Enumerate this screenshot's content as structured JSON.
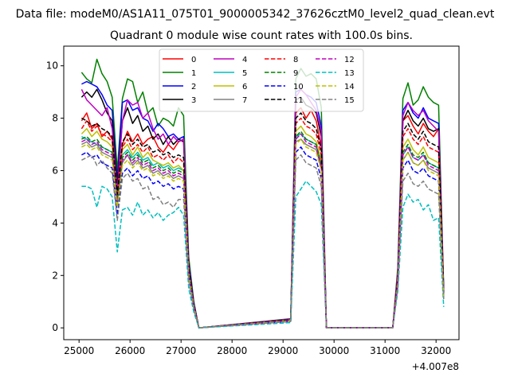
{
  "chart_data": {
    "type": "line",
    "suptitle": "Data file: modeM0/AS1A11_075T01_9000005342_37626cztM0_level2_quad_clean.evt",
    "title": "Quadrant 0 module wise count rates with 100.0s bins.",
    "xlabel": "",
    "ylabel": "",
    "x_offset_label": "+4.007e8",
    "xlim": [
      24700,
      32450
    ],
    "ylim": [
      -0.45,
      10.75
    ],
    "xticks": [
      25000,
      26000,
      27000,
      28000,
      29000,
      30000,
      31000,
      32000
    ],
    "yticks": [
      0,
      2,
      4,
      6,
      8,
      10
    ],
    "grid": false,
    "legend": {
      "placement": "upper-center",
      "columns": 4
    },
    "x": [
      25050,
      25150,
      25250,
      25350,
      25450,
      25550,
      25650,
      25750,
      25850,
      25950,
      26050,
      26150,
      26250,
      26350,
      26450,
      26550,
      26650,
      26750,
      26850,
      26950,
      27050,
      27150,
      27250,
      27350,
      29150,
      29250,
      29350,
      29450,
      29550,
      29650,
      29750,
      29850,
      31150,
      31250,
      31350,
      31450,
      31550,
      31650,
      31750,
      31850,
      31950,
      32050,
      32150
    ],
    "off_segments": [
      [
        27350,
        29150
      ],
      [
        29850,
        31150
      ]
    ],
    "series": [
      {
        "name": "0",
        "color": "#ff0000",
        "dash": "solid",
        "values": [
          7.9,
          8.2,
          7.6,
          7.8,
          7.3,
          7.5,
          7.2,
          5.0,
          7.0,
          7.5,
          7.1,
          7.4,
          7.0,
          7.2,
          7.3,
          6.9,
          6.7,
          7.0,
          6.8,
          7.1,
          7.2,
          2.3,
          0.9,
          0.0,
          0.3,
          8.2,
          8.4,
          8.0,
          8.3,
          7.9,
          6.9,
          0.0,
          0.0,
          1.9,
          7.9,
          8.1,
          7.7,
          7.4,
          7.8,
          7.5,
          7.3,
          7.6,
          1.2
        ]
      },
      {
        "name": "1",
        "color": "#008000",
        "dash": "solid",
        "values": [
          9.75,
          9.5,
          9.35,
          10.25,
          9.7,
          9.4,
          8.8,
          6.0,
          8.75,
          9.5,
          9.4,
          8.6,
          9.0,
          8.2,
          8.4,
          7.7,
          8.0,
          7.9,
          7.7,
          8.4,
          8.1,
          2.7,
          1.0,
          0.0,
          0.35,
          9.5,
          9.9,
          9.6,
          9.7,
          9.5,
          8.4,
          0.0,
          0.0,
          2.3,
          8.75,
          9.35,
          8.5,
          8.7,
          9.2,
          8.8,
          8.6,
          8.5,
          1.5
        ]
      },
      {
        "name": "2",
        "color": "#0000ff",
        "dash": "solid",
        "values": [
          9.3,
          9.4,
          9.3,
          9.2,
          8.9,
          8.5,
          8.3,
          5.6,
          8.6,
          8.7,
          8.3,
          8.4,
          8.0,
          7.9,
          7.5,
          7.8,
          7.6,
          7.3,
          7.4,
          7.2,
          7.3,
          2.5,
          0.95,
          0.0,
          0.33,
          9.0,
          9.1,
          8.9,
          8.8,
          8.6,
          7.7,
          0.0,
          0.0,
          2.1,
          8.3,
          8.6,
          8.2,
          8.0,
          8.4,
          8.0,
          7.9,
          7.8,
          1.4
        ]
      },
      {
        "name": "3",
        "color": "#000000",
        "dash": "solid",
        "values": [
          8.8,
          9.0,
          8.8,
          9.1,
          8.7,
          8.2,
          7.9,
          5.5,
          7.9,
          8.4,
          7.8,
          8.1,
          7.5,
          7.7,
          7.2,
          7.4,
          7.0,
          7.3,
          7.0,
          7.2,
          7.1,
          2.4,
          0.9,
          0.0,
          0.32,
          8.7,
          8.8,
          8.5,
          8.4,
          8.2,
          7.3,
          0.0,
          0.0,
          2.0,
          7.9,
          8.3,
          7.9,
          7.7,
          8.0,
          7.6,
          7.5,
          7.6,
          1.4
        ]
      },
      {
        "name": "4",
        "color": "#bf00bf",
        "dash": "solid",
        "values": [
          9.1,
          8.7,
          8.5,
          8.3,
          8.1,
          8.4,
          7.6,
          5.2,
          7.9,
          8.7,
          8.5,
          8.6,
          8.0,
          8.2,
          7.6,
          7.2,
          7.4,
          7.0,
          7.3,
          7.1,
          7.2,
          2.4,
          0.9,
          0.0,
          0.33,
          8.8,
          9.1,
          8.9,
          8.6,
          8.3,
          7.5,
          0.0,
          0.0,
          2.1,
          8.1,
          8.6,
          8.3,
          8.1,
          8.3,
          7.9,
          7.7,
          7.5,
          1.4
        ]
      },
      {
        "name": "5",
        "color": "#00bfbf",
        "dash": "solid",
        "values": [
          7.3,
          7.2,
          7.1,
          7.0,
          6.9,
          6.8,
          6.7,
          4.8,
          6.6,
          6.8,
          6.5,
          6.7,
          6.4,
          6.5,
          6.2,
          6.3,
          6.1,
          6.2,
          6.0,
          6.1,
          6.0,
          2.0,
          0.8,
          0.0,
          0.28,
          7.3,
          7.4,
          7.2,
          7.1,
          7.0,
          6.2,
          0.0,
          0.0,
          1.8,
          6.6,
          6.9,
          6.5,
          6.4,
          6.6,
          6.3,
          6.2,
          6.1,
          1.2
        ]
      },
      {
        "name": "6",
        "color": "#bfbf00",
        "dash": "solid",
        "values": [
          7.4,
          7.6,
          7.3,
          7.5,
          7.2,
          7.1,
          6.9,
          4.9,
          6.8,
          7.0,
          6.6,
          6.9,
          6.5,
          6.7,
          6.4,
          6.3,
          6.2,
          6.3,
          6.1,
          6.2,
          6.0,
          2.1,
          0.8,
          0.0,
          0.29,
          7.5,
          7.7,
          7.4,
          7.3,
          7.1,
          6.4,
          0.0,
          0.0,
          1.8,
          6.9,
          7.2,
          6.8,
          6.6,
          6.9,
          6.5,
          6.4,
          6.3,
          1.2
        ]
      },
      {
        "name": "7",
        "color": "#808080",
        "dash": "solid",
        "values": [
          7.0,
          7.1,
          6.9,
          7.0,
          6.7,
          6.6,
          6.5,
          4.7,
          6.3,
          6.6,
          6.2,
          6.4,
          6.1,
          6.2,
          5.9,
          6.0,
          5.8,
          5.9,
          5.7,
          5.8,
          5.7,
          2.0,
          0.8,
          0.0,
          0.27,
          7.1,
          7.2,
          7.0,
          6.9,
          6.8,
          6.1,
          0.0,
          0.0,
          1.7,
          6.4,
          6.7,
          6.3,
          6.2,
          6.4,
          6.1,
          6.0,
          5.9,
          1.1
        ]
      },
      {
        "name": "8",
        "color": "#ff0000",
        "dash": "dashed",
        "values": [
          7.6,
          7.9,
          7.5,
          7.7,
          7.4,
          7.3,
          7.1,
          5.0,
          6.9,
          7.2,
          6.8,
          7.0,
          6.7,
          6.9,
          6.5,
          6.6,
          6.4,
          6.6,
          6.3,
          6.5,
          6.3,
          2.2,
          0.85,
          0.0,
          0.3,
          7.8,
          8.0,
          7.7,
          7.6,
          7.4,
          6.6,
          0.0,
          0.0,
          1.9,
          7.3,
          7.6,
          7.2,
          7.0,
          7.3,
          6.9,
          6.8,
          6.7,
          1.3
        ]
      },
      {
        "name": "9",
        "color": "#008000",
        "dash": "dashed",
        "values": [
          7.2,
          7.3,
          7.1,
          7.2,
          6.9,
          6.8,
          6.7,
          4.8,
          6.5,
          6.7,
          6.4,
          6.6,
          6.3,
          6.4,
          6.1,
          6.2,
          6.0,
          6.1,
          5.9,
          6.0,
          5.9,
          2.1,
          0.8,
          0.0,
          0.28,
          7.3,
          7.5,
          7.2,
          7.1,
          7.0,
          6.2,
          0.0,
          0.0,
          1.8,
          6.7,
          7.0,
          6.6,
          6.5,
          6.7,
          6.3,
          6.2,
          6.1,
          1.2
        ]
      },
      {
        "name": "10",
        "color": "#0000ff",
        "dash": "dashed",
        "values": [
          6.6,
          6.7,
          6.5,
          6.6,
          6.3,
          6.2,
          6.1,
          4.3,
          5.9,
          6.1,
          5.8,
          6.0,
          5.7,
          5.8,
          5.5,
          5.6,
          5.4,
          5.5,
          5.3,
          5.4,
          5.3,
          1.9,
          0.75,
          0.0,
          0.25,
          6.7,
          6.9,
          6.6,
          6.5,
          6.4,
          5.7,
          0.0,
          0.0,
          1.6,
          6.1,
          6.4,
          6.0,
          5.9,
          6.1,
          5.8,
          5.7,
          5.6,
          1.1
        ]
      },
      {
        "name": "11",
        "color": "#000000",
        "dash": "dashed",
        "values": [
          8.0,
          7.9,
          7.7,
          7.8,
          7.6,
          7.5,
          7.3,
          5.1,
          7.1,
          7.4,
          7.0,
          7.2,
          6.9,
          7.0,
          6.7,
          6.8,
          6.6,
          6.7,
          6.5,
          6.6,
          6.5,
          2.3,
          0.88,
          0.0,
          0.31,
          8.0,
          8.2,
          7.9,
          7.8,
          7.6,
          6.8,
          0.0,
          0.0,
          1.9,
          7.5,
          7.8,
          7.4,
          7.2,
          7.5,
          7.1,
          7.0,
          6.9,
          1.3
        ]
      },
      {
        "name": "12",
        "color": "#bf00bf",
        "dash": "dashed",
        "values": [
          7.1,
          7.2,
          7.0,
          7.1,
          6.8,
          6.7,
          6.6,
          4.7,
          6.4,
          6.6,
          6.3,
          6.5,
          6.2,
          6.3,
          6.0,
          6.1,
          5.9,
          6.0,
          5.8,
          5.9,
          5.8,
          2.0,
          0.8,
          0.0,
          0.28,
          7.2,
          7.4,
          7.1,
          7.0,
          6.9,
          6.1,
          0.0,
          0.0,
          1.7,
          6.6,
          6.9,
          6.5,
          6.4,
          6.6,
          6.2,
          6.1,
          6.0,
          1.2
        ]
      },
      {
        "name": "13",
        "color": "#00bfbf",
        "dash": "dashed",
        "values": [
          5.4,
          5.4,
          5.3,
          4.6,
          5.4,
          5.3,
          5.0,
          2.9,
          4.5,
          4.6,
          4.3,
          4.8,
          4.3,
          4.5,
          4.2,
          4.4,
          4.1,
          4.3,
          4.4,
          4.6,
          4.3,
          1.5,
          0.6,
          0.0,
          0.2,
          5.0,
          5.3,
          5.6,
          5.4,
          5.2,
          4.7,
          0.0,
          0.0,
          1.4,
          4.6,
          5.1,
          4.8,
          4.9,
          4.5,
          4.7,
          4.1,
          4.2,
          0.8
        ]
      },
      {
        "name": "14",
        "color": "#bfbf00",
        "dash": "dashed",
        "values": [
          6.9,
          7.0,
          6.8,
          6.9,
          6.6,
          6.5,
          6.4,
          4.6,
          6.2,
          6.4,
          6.1,
          6.3,
          6.0,
          6.1,
          5.8,
          5.9,
          5.7,
          5.8,
          5.6,
          5.7,
          5.6,
          2.0,
          0.78,
          0.0,
          0.27,
          7.0,
          7.2,
          6.9,
          6.8,
          6.7,
          6.0,
          0.0,
          0.0,
          1.7,
          6.4,
          6.7,
          6.3,
          6.2,
          6.4,
          6.0,
          5.9,
          5.8,
          1.1
        ]
      },
      {
        "name": "15",
        "color": "#808080",
        "dash": "dashed",
        "values": [
          6.4,
          6.5,
          6.6,
          6.2,
          6.4,
          6.1,
          5.9,
          4.1,
          5.7,
          5.9,
          5.6,
          5.7,
          5.3,
          5.4,
          4.9,
          5.0,
          4.7,
          4.8,
          4.6,
          4.9,
          4.9,
          1.8,
          0.7,
          0.0,
          0.25,
          6.4,
          6.6,
          6.3,
          6.2,
          6.1,
          5.4,
          0.0,
          0.0,
          1.6,
          5.6,
          5.9,
          5.5,
          5.4,
          5.6,
          5.3,
          5.2,
          5.1,
          1.1
        ]
      }
    ]
  }
}
